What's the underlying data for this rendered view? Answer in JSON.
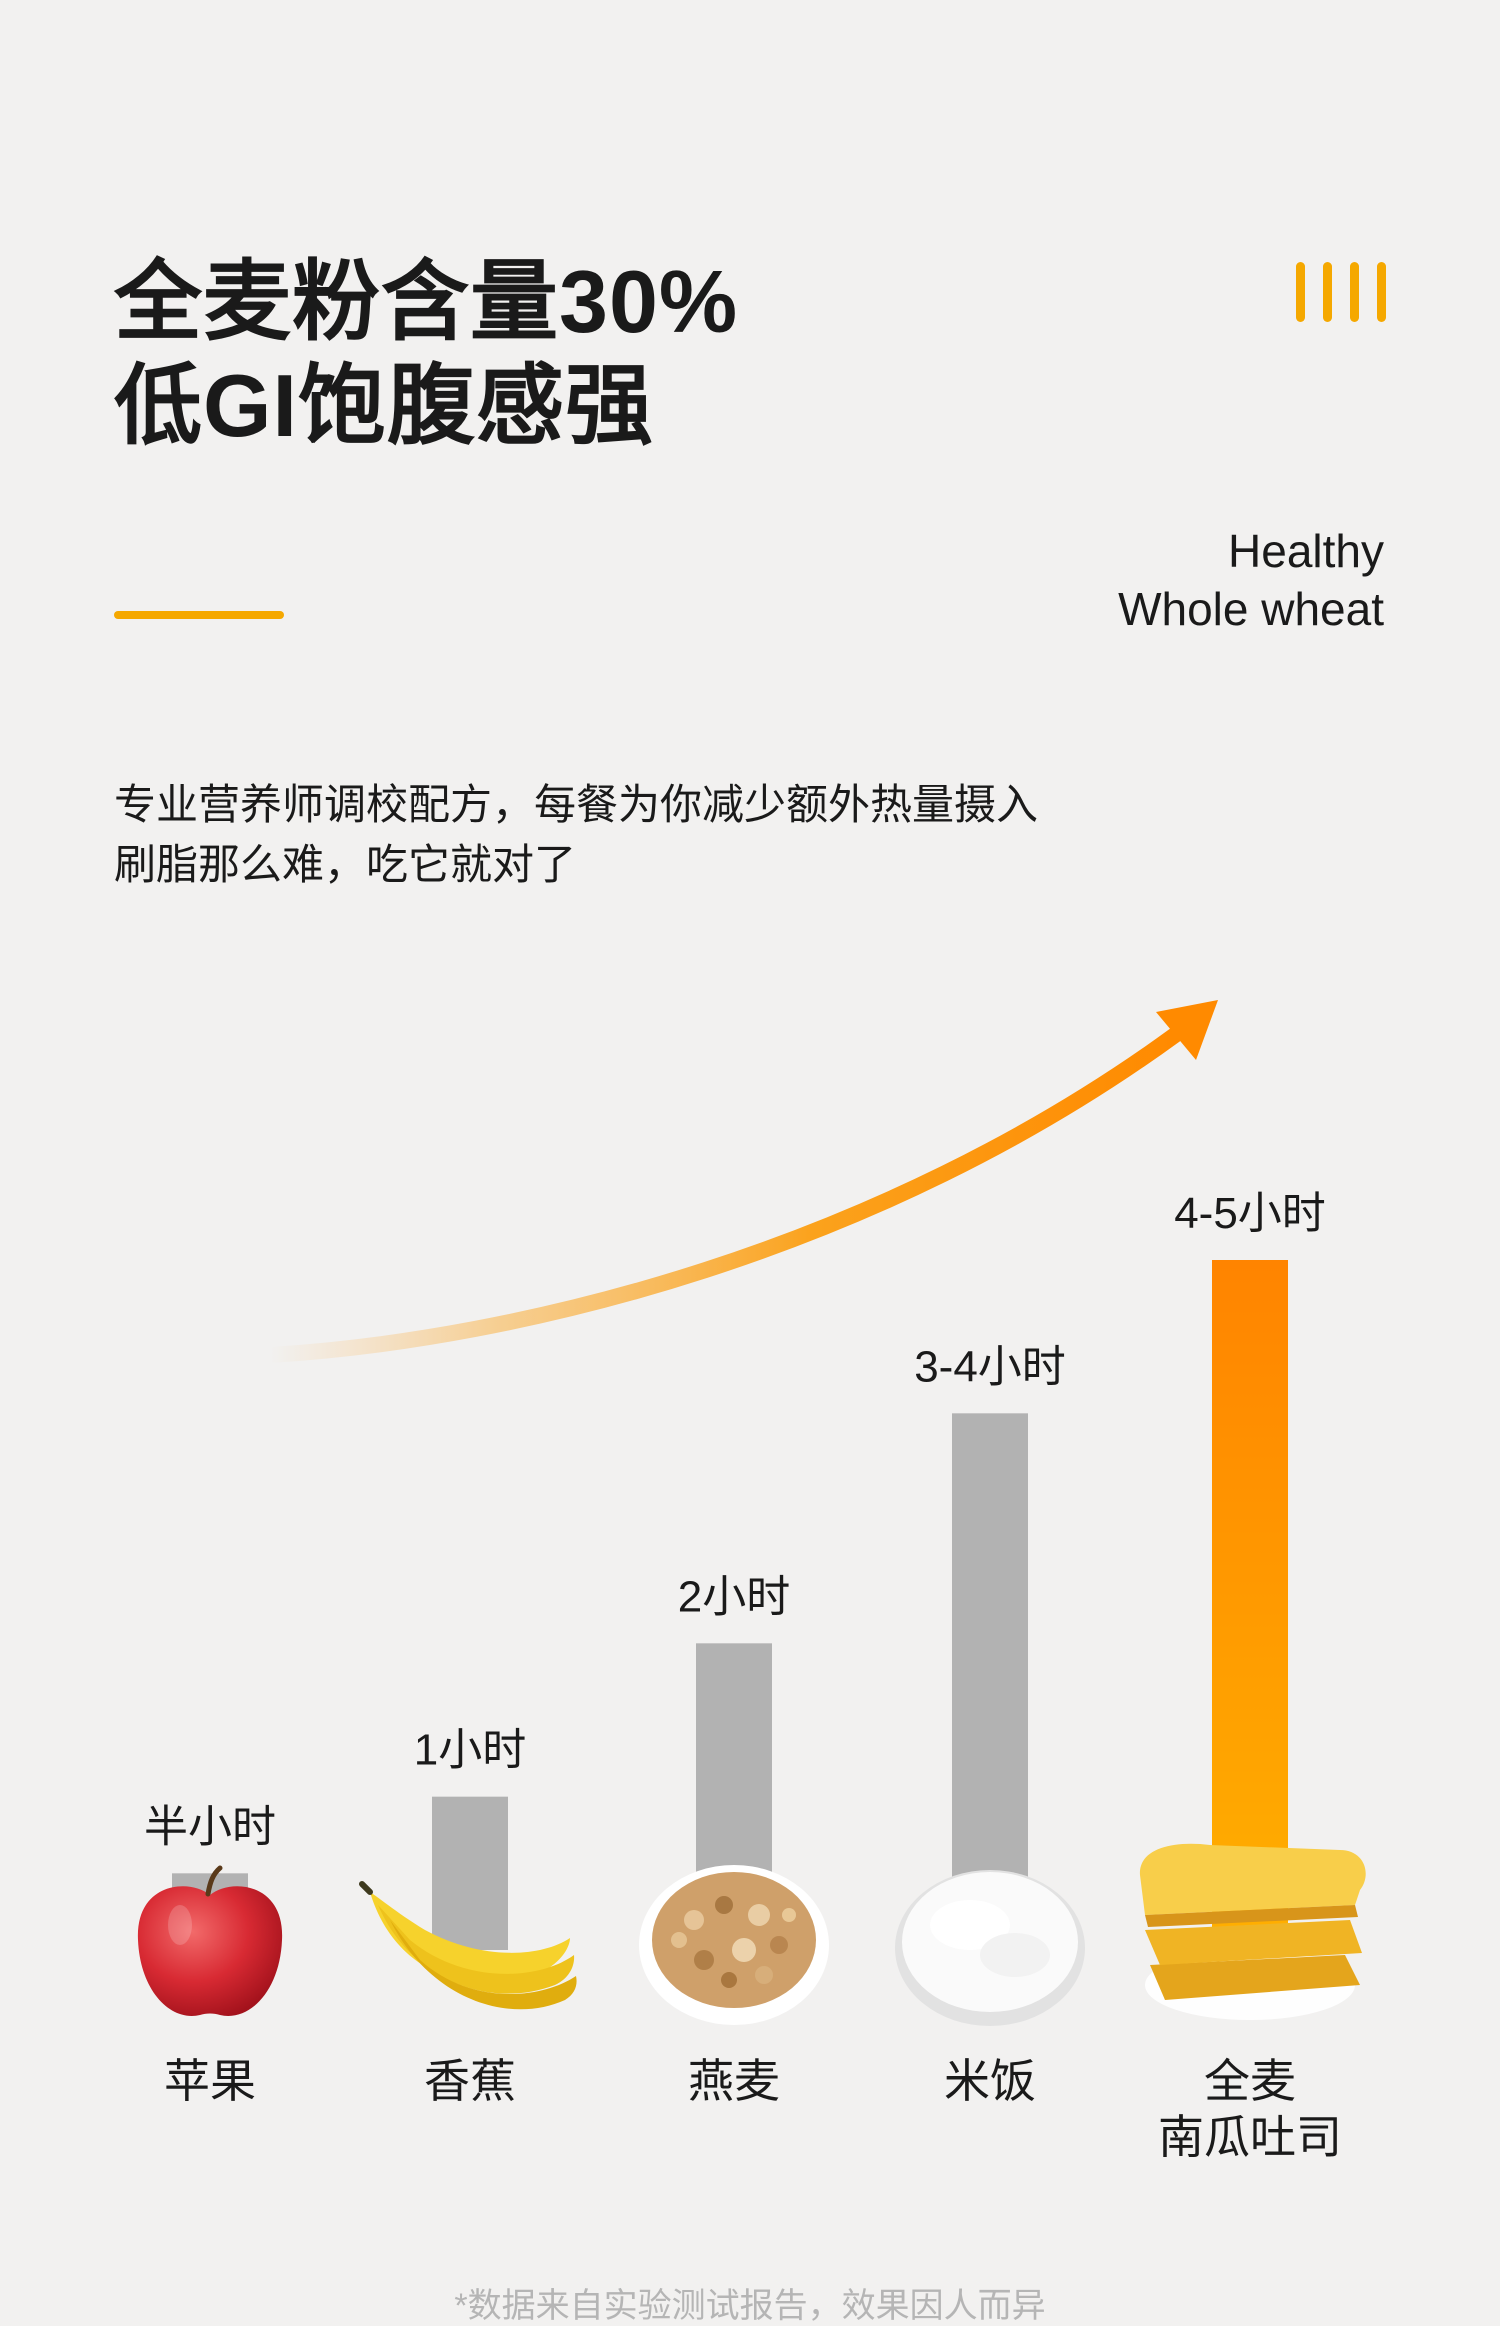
{
  "header": {
    "title_line1": "全麦粉含量30%",
    "title_line2": "低GI饱腹感强",
    "en_line1": "Healthy",
    "en_line2": "Whole wheat"
  },
  "description": {
    "line1": "专业营养师调校配方，每餐为你减少额外热量摄入",
    "line2": "刷脂那么难，吃它就对了"
  },
  "colors": {
    "accent": "#f5a800",
    "bar_gray": "#b2b2b2",
    "highlight_top": "#ff8400",
    "highlight_bottom": "#ffb000",
    "background": "#f2f1f0"
  },
  "icons": [
    "apple-icon",
    "banana-icon",
    "oats-icon",
    "rice-icon",
    "pumpkin-toast-icon"
  ],
  "chart_data": {
    "type": "bar",
    "categories": [
      "苹果",
      "香蕉",
      "燕麦",
      "米饭",
      "全麦\n南瓜吐司"
    ],
    "value_labels": [
      "半小时",
      "1小时",
      "2小时",
      "3-4小时",
      "4-5小时"
    ],
    "values": [
      0.5,
      1,
      2,
      3.5,
      4.5
    ],
    "highlight_index": 4,
    "grid": false,
    "legend": "none",
    "trend_arrow": true
  },
  "footnote": "*数据来自实验测试报告，效果因人而异"
}
